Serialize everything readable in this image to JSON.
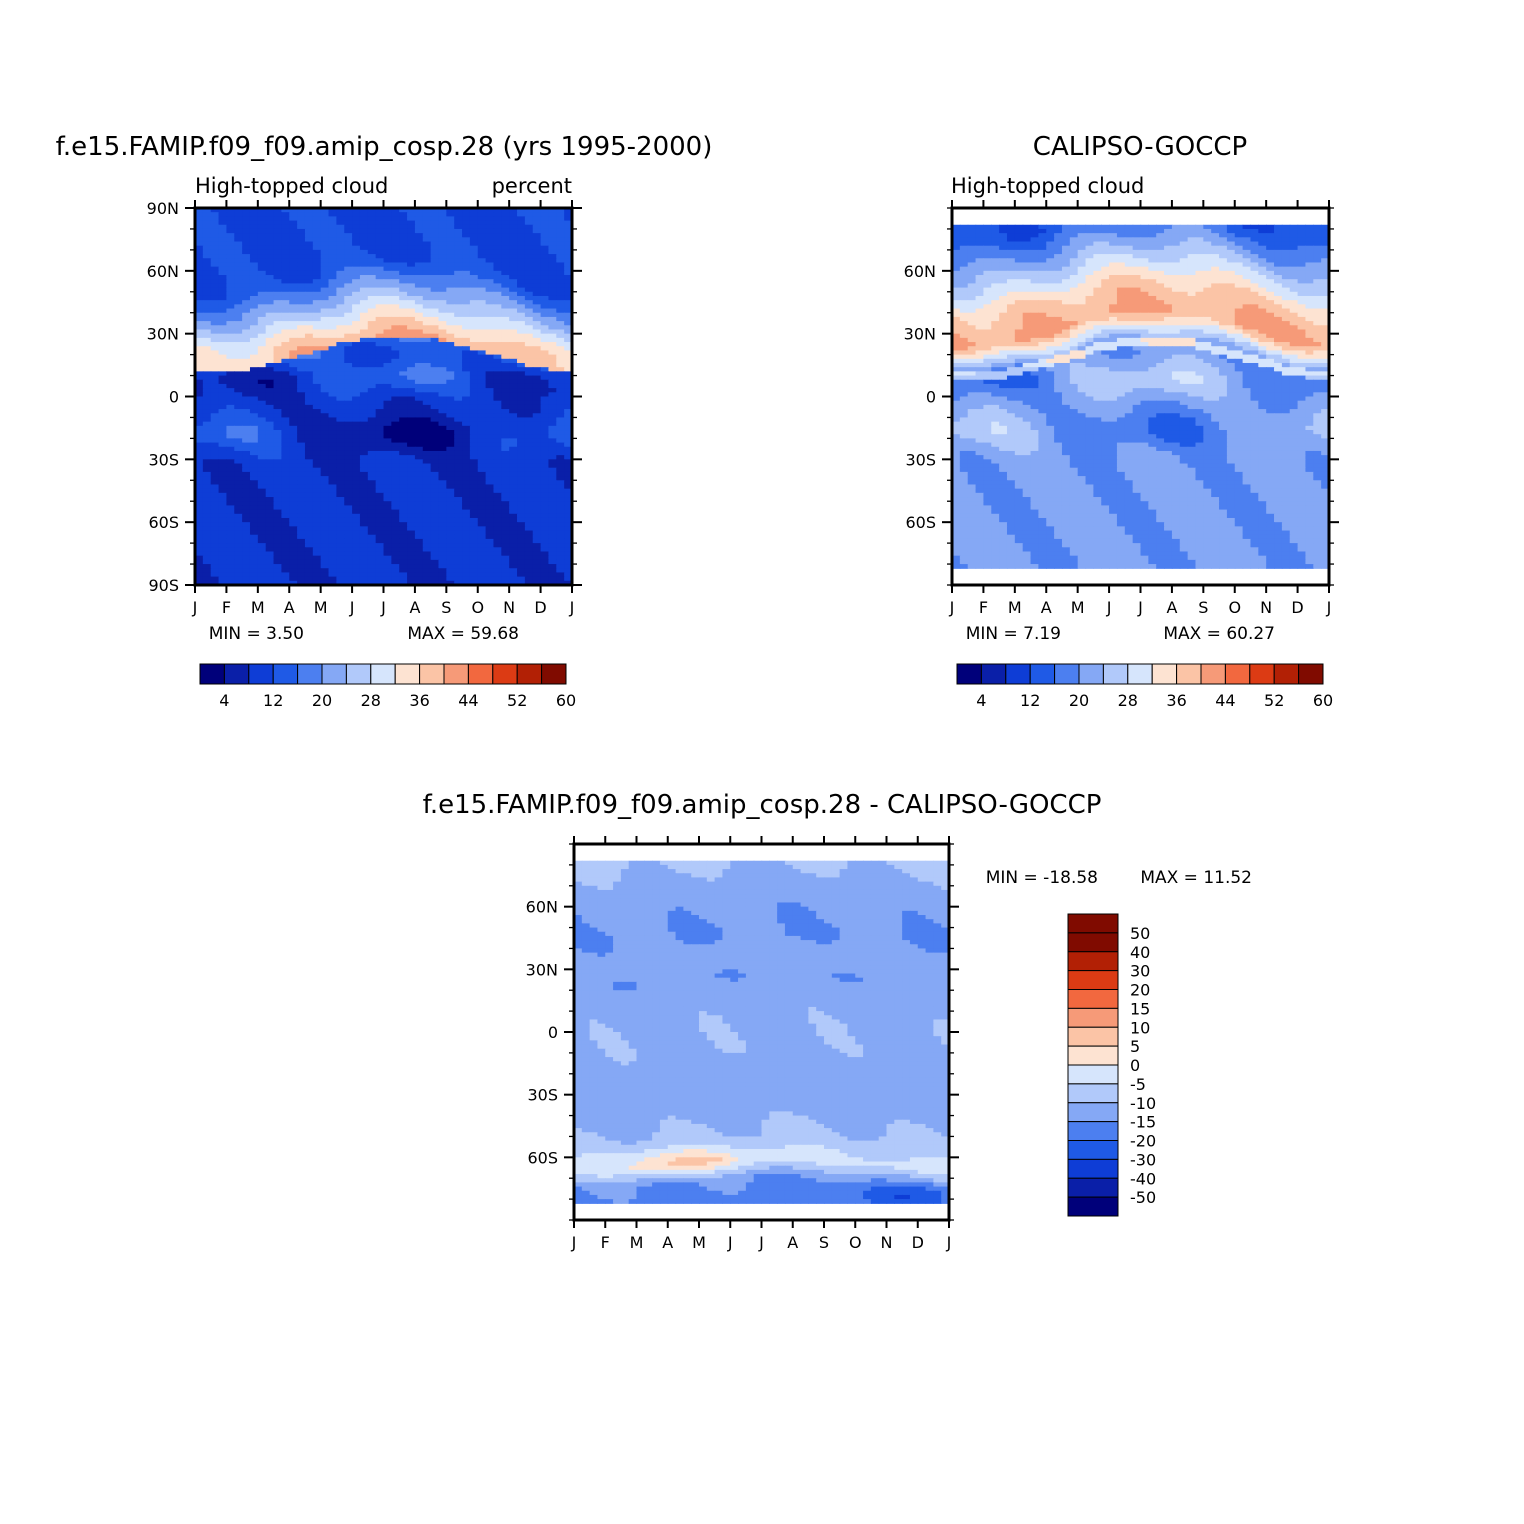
{
  "chart_data": [
    {
      "type": "heatmap",
      "id": "model",
      "title": "f.e15.FAMIP.f09_f09.amip_cosp.28 (yrs 1995-2000)",
      "left_label": "High-topped cloud",
      "right_label": "percent",
      "x_tick_labels": [
        "J",
        "F",
        "M",
        "A",
        "M",
        "J",
        "J",
        "A",
        "S",
        "O",
        "N",
        "D",
        "J"
      ],
      "y_ticks": [
        {
          "v": 90,
          "label": "90N"
        },
        {
          "v": 60,
          "label": "60N"
        },
        {
          "v": 30,
          "label": "30N"
        },
        {
          "v": 0,
          "label": "0"
        },
        {
          "v": -30,
          "label": "30S"
        },
        {
          "v": -60,
          "label": "60S"
        },
        {
          "v": -90,
          "label": "90S"
        }
      ],
      "ylim": [
        -90,
        90
      ],
      "data_lat_range": [
        -90,
        90
      ],
      "xlim": [
        0,
        12
      ],
      "min_text": "MIN =    3.50",
      "max_text": "MAX =   59.68",
      "min": 3.5,
      "max": 59.68,
      "colorbar": "abs",
      "base": [
        [
          65,
          11
        ],
        [
          56,
          13
        ],
        [
          40,
          25
        ],
        [
          33,
          31
        ],
        [
          20,
          41
        ],
        [
          22,
          21
        ],
        [
          31,
          13
        ],
        [
          45,
          33
        ],
        [
          22,
          27
        ],
        [
          28,
          21
        ],
        [
          31,
          27
        ],
        [
          20,
          15
        ],
        [
          10,
          9
        ]
      ]
    },
    {
      "type": "heatmap",
      "id": "obs",
      "title": "CALIPSO-GOCCP",
      "left_label": "High-topped cloud",
      "right_label": "",
      "x_tick_labels": [
        "J",
        "F",
        "M",
        "A",
        "M",
        "J",
        "J",
        "A",
        "S",
        "O",
        "N",
        "D",
        "J"
      ],
      "y_ticks": [
        {
          "v": 60,
          "label": "60N"
        },
        {
          "v": 30,
          "label": "30N"
        },
        {
          "v": 0,
          "label": "0"
        },
        {
          "v": -30,
          "label": "30S"
        },
        {
          "v": -60,
          "label": "60S"
        }
      ],
      "ylim": [
        -90,
        90
      ],
      "data_lat_range": [
        -82,
        82
      ],
      "xlim": [
        0,
        12
      ],
      "min_text": "MIN =    7.19",
      "max_text": "MAX =   60.27",
      "min": 7.19,
      "max": 60.27,
      "colorbar": "abs",
      "base": [
        [
          82,
          13
        ],
        [
          66,
          23
        ],
        [
          46,
          37
        ],
        [
          33,
          41
        ],
        [
          20,
          23
        ],
        [
          22,
          35
        ],
        [
          32,
          27
        ],
        [
          49,
          40
        ],
        [
          16,
          31
        ],
        [
          28,
          29
        ],
        [
          37,
          37
        ],
        [
          28,
          25
        ],
        [
          20,
          21
        ]
      ]
    },
    {
      "type": "heatmap",
      "id": "diff",
      "title": "f.e15.FAMIP.f09_f09.amip_cosp.28 - CALIPSO-GOCCP",
      "left_label": "",
      "right_label": "",
      "x_tick_labels": [
        "J",
        "F",
        "M",
        "A",
        "M",
        "J",
        "J",
        "A",
        "S",
        "O",
        "N",
        "D",
        "J"
      ],
      "y_ticks": [
        {
          "v": 60,
          "label": "60N"
        },
        {
          "v": 30,
          "label": "30N"
        },
        {
          "v": 0,
          "label": "0"
        },
        {
          "v": -30,
          "label": "30S"
        },
        {
          "v": -60,
          "label": "60S"
        }
      ],
      "ylim": [
        -90,
        90
      ],
      "data_lat_range": [
        -82,
        82
      ],
      "xlim": [
        0,
        12
      ],
      "min_text": "MIN = -18.58",
      "max_text": "MAX =   11.52",
      "min": -18.58,
      "max": 11.52,
      "colorbar": "diff",
      "base": [
        [
          82,
          -4
        ],
        [
          65,
          -8
        ],
        [
          45,
          -10
        ],
        [
          35,
          -7
        ],
        [
          25,
          -9
        ],
        [
          15,
          -7
        ],
        [
          3,
          -6
        ],
        [
          -10,
          -6
        ],
        [
          -20,
          -8
        ],
        [
          -38,
          -7
        ],
        [
          -52,
          -4
        ],
        [
          -63,
          2
        ],
        [
          -72,
          -10
        ],
        [
          -82,
          -12
        ]
      ]
    }
  ],
  "colorbars": {
    "abs": {
      "labels": [
        "4",
        "12",
        "20",
        "28",
        "36",
        "44",
        "52",
        "60"
      ],
      "bounds": [
        0,
        4,
        8,
        12,
        16,
        20,
        24,
        28,
        32,
        36,
        40,
        44,
        48,
        52,
        56,
        60
      ],
      "colors": [
        "#00007a",
        "#0a1fa8",
        "#0e3dd6",
        "#1f5ae6",
        "#4c7ff0",
        "#85a8f5",
        "#b1c9fa",
        "#d6e5fc",
        "#fde3d2",
        "#fbc4a6",
        "#f69a78",
        "#f2683f",
        "#dc3b14",
        "#b22005",
        "#800b00"
      ]
    },
    "diff": {
      "labels": [
        "50",
        "40",
        "30",
        "20",
        "15",
        "10",
        "5",
        "0",
        "-5",
        "-10",
        "-15",
        "-20",
        "-30",
        "-40",
        "-50"
      ],
      "bounds": [
        -50,
        -40,
        -30,
        -20,
        -15,
        -10,
        -5,
        0,
        5,
        10,
        15,
        20,
        30,
        40,
        50
      ],
      "colors": [
        "#00007a",
        "#0a1fa8",
        "#0e3dd6",
        "#1f5ae6",
        "#4c7ff0",
        "#85a8f5",
        "#b1c9fa",
        "#d6e5fc",
        "#fde3d2",
        "#fbc4a6",
        "#f69a78",
        "#f2683f",
        "#dc3b14",
        "#b22005",
        "#800b00",
        "#800b00"
      ]
    }
  }
}
